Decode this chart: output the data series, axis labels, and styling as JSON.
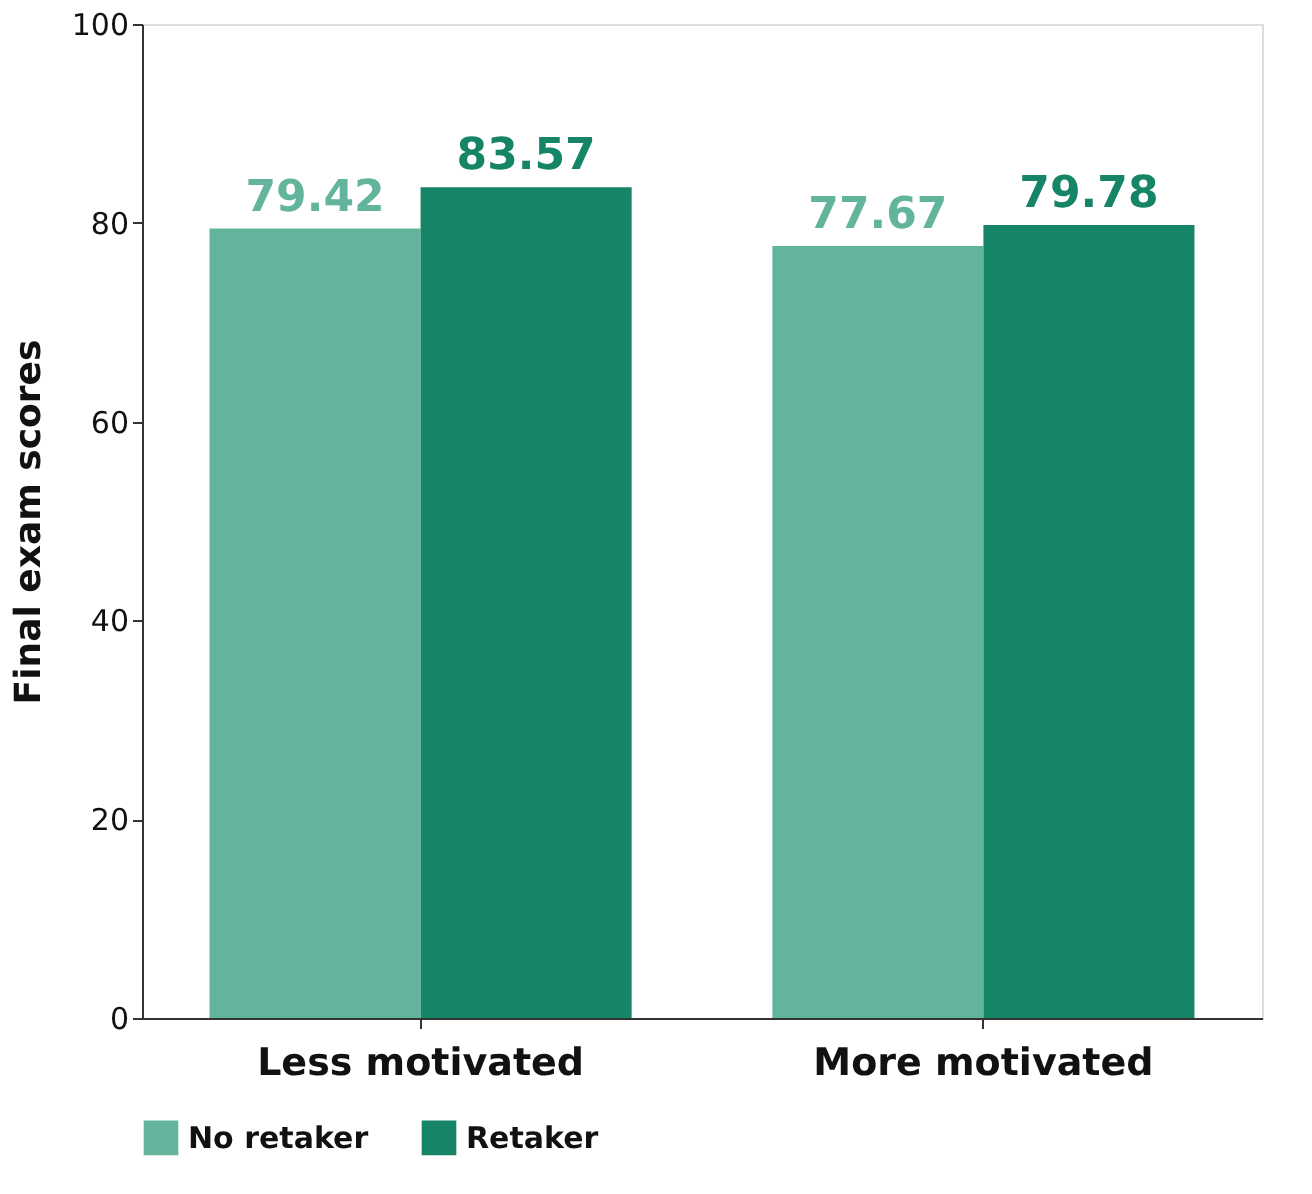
{
  "chart_data": {
    "type": "bar",
    "ylabel": "Final exam scores",
    "categories": [
      "Less motivated",
      "More motivated"
    ],
    "series": [
      {
        "name": "No retaker",
        "color": "#62b59c",
        "values": [
          79.42,
          77.67
        ]
      },
      {
        "name": "Retaker",
        "color": "#168467",
        "values": [
          83.57,
          79.78
        ]
      }
    ],
    "ylim": [
      0,
      100
    ],
    "yticks": [
      0,
      20,
      40,
      60,
      80,
      100
    ],
    "grid": false,
    "legend": "bottom",
    "data_labels": true
  }
}
